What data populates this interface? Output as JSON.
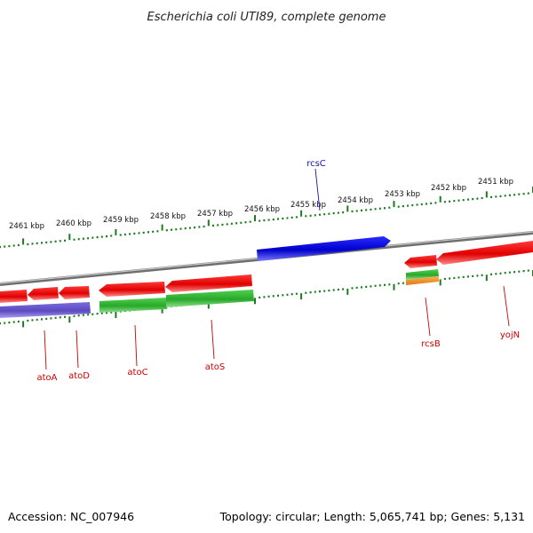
{
  "title": "Escherichia coli UTI89, complete genome",
  "footer": {
    "accession": "Accession: NC_007946",
    "summary": "Topology: circular; Length: 5,065,741 bp; Genes: 5,131"
  },
  "colors": {
    "backbone": "#8a8a8a",
    "ticks": "#1e7a1e",
    "forward_gene": "#ee1111",
    "reverse_gene_green": "#3cbf3c",
    "blue_gene": "#1111dd",
    "purple_gene": "#6a5acd",
    "orange_gene": "#f08c1e",
    "label_red": "#cc0000",
    "label_blue": "#1111aa"
  },
  "scale_labels": [
    "2461 kbp",
    "2460 kbp",
    "2459 kbp",
    "2458 kbp",
    "2457 kbp",
    "2456 kbp",
    "2455 kbp",
    "2454 kbp",
    "2453 kbp",
    "2452 kbp",
    "2451 kbp"
  ],
  "gene_labels": {
    "rcsC": "rcsC",
    "atoA": "atoA",
    "atoD": "atoD",
    "atoC": "atoC",
    "atoS": "atoS",
    "rcsB": "rcsB",
    "yojN": "yojN"
  }
}
